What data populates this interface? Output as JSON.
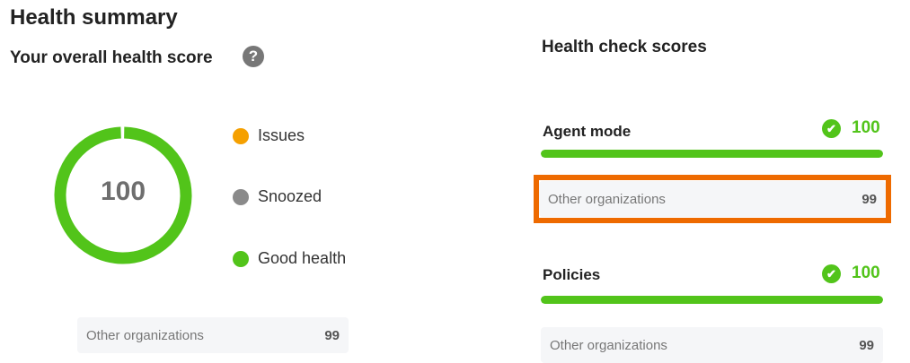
{
  "title": "Health summary",
  "overall": {
    "heading": "Your overall health score",
    "help_icon": "question-circle-icon",
    "score": "100",
    "score_value": 100,
    "legend": [
      {
        "label": "Issues",
        "color": "#f5a000"
      },
      {
        "label": "Snoozed",
        "color": "#8a8a8a"
      },
      {
        "label": "Good health",
        "color": "#52c41a"
      }
    ],
    "other": {
      "label": "Other organizations",
      "value": "99"
    }
  },
  "checks": {
    "heading": "Health check scores",
    "items": [
      {
        "name": "Agent mode",
        "score": "100",
        "progress": 100,
        "other_label": "Other organizations",
        "other_value": "99"
      },
      {
        "name": "Policies",
        "score": "100",
        "progress": 100,
        "other_label": "Other organizations",
        "other_value": "99"
      }
    ]
  },
  "colors": {
    "good": "#52c41a",
    "highlight": "#ee6a00"
  }
}
